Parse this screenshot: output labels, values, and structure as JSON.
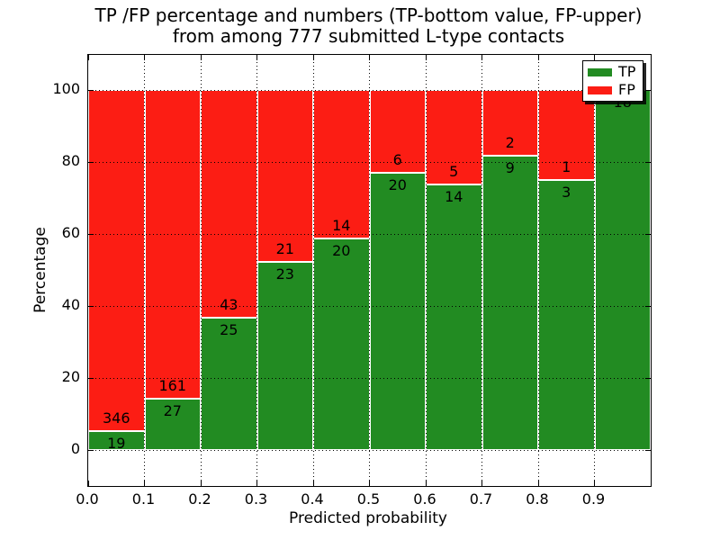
{
  "chart_data": {
    "type": "bar",
    "stacked": true,
    "normalized_to_percent": true,
    "title_line1": "TP /FP percentage and numbers (TP-bottom value, FP-upper)",
    "title_line2": "from among 777 submitted L-type contacts",
    "total_contacts": 777,
    "xlabel": "Predicted probability",
    "ylabel": "Percentage",
    "x_bin_edges": [
      0.0,
      0.1,
      0.2,
      0.3,
      0.4,
      0.5,
      0.6,
      0.7,
      0.8,
      0.9,
      1.0
    ],
    "x_tick_labels": [
      "0.0",
      "0.1",
      "0.2",
      "0.3",
      "0.4",
      "0.5",
      "0.6",
      "0.7",
      "0.8",
      "0.9"
    ],
    "y_ticks": [
      0,
      20,
      40,
      60,
      80,
      100
    ],
    "y_tick_labels": [
      "0",
      "20",
      "40",
      "60",
      "80",
      "100"
    ],
    "xlim": [
      0.0,
      1.0
    ],
    "ylim": [
      -10,
      109.75
    ],
    "grid": true,
    "grid_style": "dotted",
    "legend_position": "upper right",
    "series": [
      {
        "name": "TP",
        "color": "#228b22",
        "counts": [
          19,
          27,
          25,
          23,
          20,
          20,
          14,
          9,
          3,
          18
        ]
      },
      {
        "name": "FP",
        "color": "#fc1d14",
        "counts": [
          346,
          161,
          43,
          21,
          14,
          6,
          5,
          2,
          1,
          0
        ]
      }
    ],
    "tp_percent_of_bin": [
      5.2,
      14.4,
      36.8,
      52.3,
      58.8,
      76.9,
      73.7,
      81.8,
      75.0,
      100.0
    ],
    "colors": {
      "tp_green": "#228b22",
      "fp_red": "#fc1d14",
      "grid": "#000000",
      "text": "#000000",
      "background": "#ffffff",
      "bar_edge": "#ffffff"
    }
  }
}
